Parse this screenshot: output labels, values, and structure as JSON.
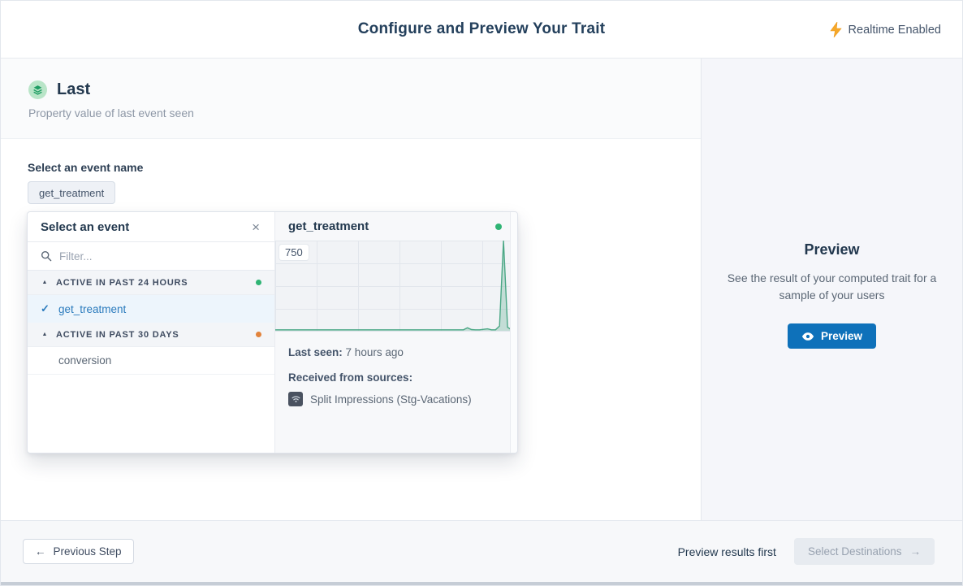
{
  "header": {
    "title": "Configure and Preview Your Trait",
    "realtime_label": "Realtime Enabled"
  },
  "trait": {
    "name": "Last",
    "description": "Property value of last event seen"
  },
  "event_selector": {
    "label": "Select an event name",
    "chip": "get_treatment"
  },
  "popover": {
    "title": "Select an event",
    "filter_placeholder": "Filter...",
    "groups": [
      {
        "label": "ACTIVE IN PAST 24 HOURS",
        "status": "green",
        "items": [
          {
            "name": "get_treatment",
            "selected": true
          }
        ]
      },
      {
        "label": "ACTIVE IN PAST 30 DAYS",
        "status": "orange",
        "items": [
          {
            "name": "conversion",
            "selected": false
          }
        ]
      }
    ]
  },
  "detail": {
    "title": "get_treatment",
    "last_seen_label": "Last seen:",
    "last_seen_value": "7 hours ago",
    "sources_label": "Received from sources:",
    "source_name": "Split Impressions (Stg-Vacations)"
  },
  "chart_data": {
    "type": "area",
    "title": "get_treatment",
    "ylim": [
      0,
      750
    ],
    "y_tick_labels": [
      "750"
    ],
    "grid": true,
    "legend": false,
    "line_color": "#4aa785",
    "fill_color": "rgba(74,167,133,0.28)",
    "values": [
      2,
      2,
      2,
      2,
      2,
      2,
      2,
      2,
      2,
      2,
      2,
      2,
      2,
      2,
      2,
      2,
      2,
      2,
      2,
      2,
      2,
      2,
      2,
      2,
      2,
      2,
      2,
      2,
      2,
      2,
      2,
      2,
      2,
      2,
      2,
      2,
      2,
      2,
      2,
      2,
      2,
      2,
      2,
      2,
      2,
      3,
      4,
      8,
      25,
      10,
      4,
      3,
      12,
      16,
      6,
      4,
      40,
      750,
      30,
      4
    ]
  },
  "preview_panel": {
    "title": "Preview",
    "description": "See the result of your computed trait for a sample of your users",
    "button_label": "Preview"
  },
  "footer": {
    "previous_label": "Previous Step",
    "hint": "Preview results first",
    "next_label": "Select Destinations"
  },
  "icons": {
    "close": "×",
    "check": "✓",
    "collapse": "▲",
    "arrow_left": "←",
    "arrow_right": "→"
  },
  "colors": {
    "green": "#2fb474",
    "orange": "#e2833b",
    "accent": "#0e71ba"
  }
}
